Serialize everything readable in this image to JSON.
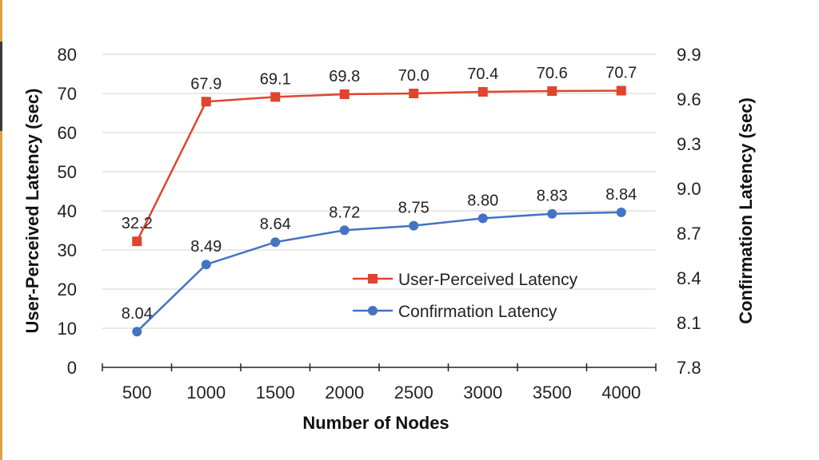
{
  "chart_data": {
    "type": "line",
    "x": [
      500,
      1000,
      1500,
      2000,
      2500,
      3000,
      3500,
      4000
    ],
    "xlabel": "Number of Nodes",
    "ylabel_left": "User-Perceived Latency (sec)",
    "ylabel_right": "Confirmation Latency (sec)",
    "ylim_left": [
      0,
      80
    ],
    "yticks_left": [
      0,
      10,
      20,
      30,
      40,
      50,
      60,
      70,
      80
    ],
    "ylim_right": [
      7.8,
      9.9
    ],
    "yticks_right": [
      "7.8",
      "8.1",
      "8.4",
      "8.7",
      "9.0",
      "9.3",
      "9.6",
      "9.9"
    ],
    "grid": "horizontal",
    "legend_position": "center-right",
    "series": [
      {
        "name": "User-Perceived Latency",
        "axis": "left",
        "color": "#e0442e",
        "marker": "square",
        "values": [
          32.2,
          67.9,
          69.1,
          69.8,
          70.0,
          70.4,
          70.6,
          70.7
        ],
        "labels": [
          "32.2",
          "67.9",
          "69.1",
          "69.8",
          "70.0",
          "70.4",
          "70.6",
          "70.7"
        ]
      },
      {
        "name": "Confirmation Latency",
        "axis": "right",
        "color": "#4472c4",
        "marker": "circle",
        "values": [
          8.04,
          8.49,
          8.64,
          8.72,
          8.75,
          8.8,
          8.83,
          8.84
        ],
        "labels": [
          "8.04",
          "8.49",
          "8.64",
          "8.72",
          "8.75",
          "8.80",
          "8.83",
          "8.84"
        ]
      }
    ]
  }
}
